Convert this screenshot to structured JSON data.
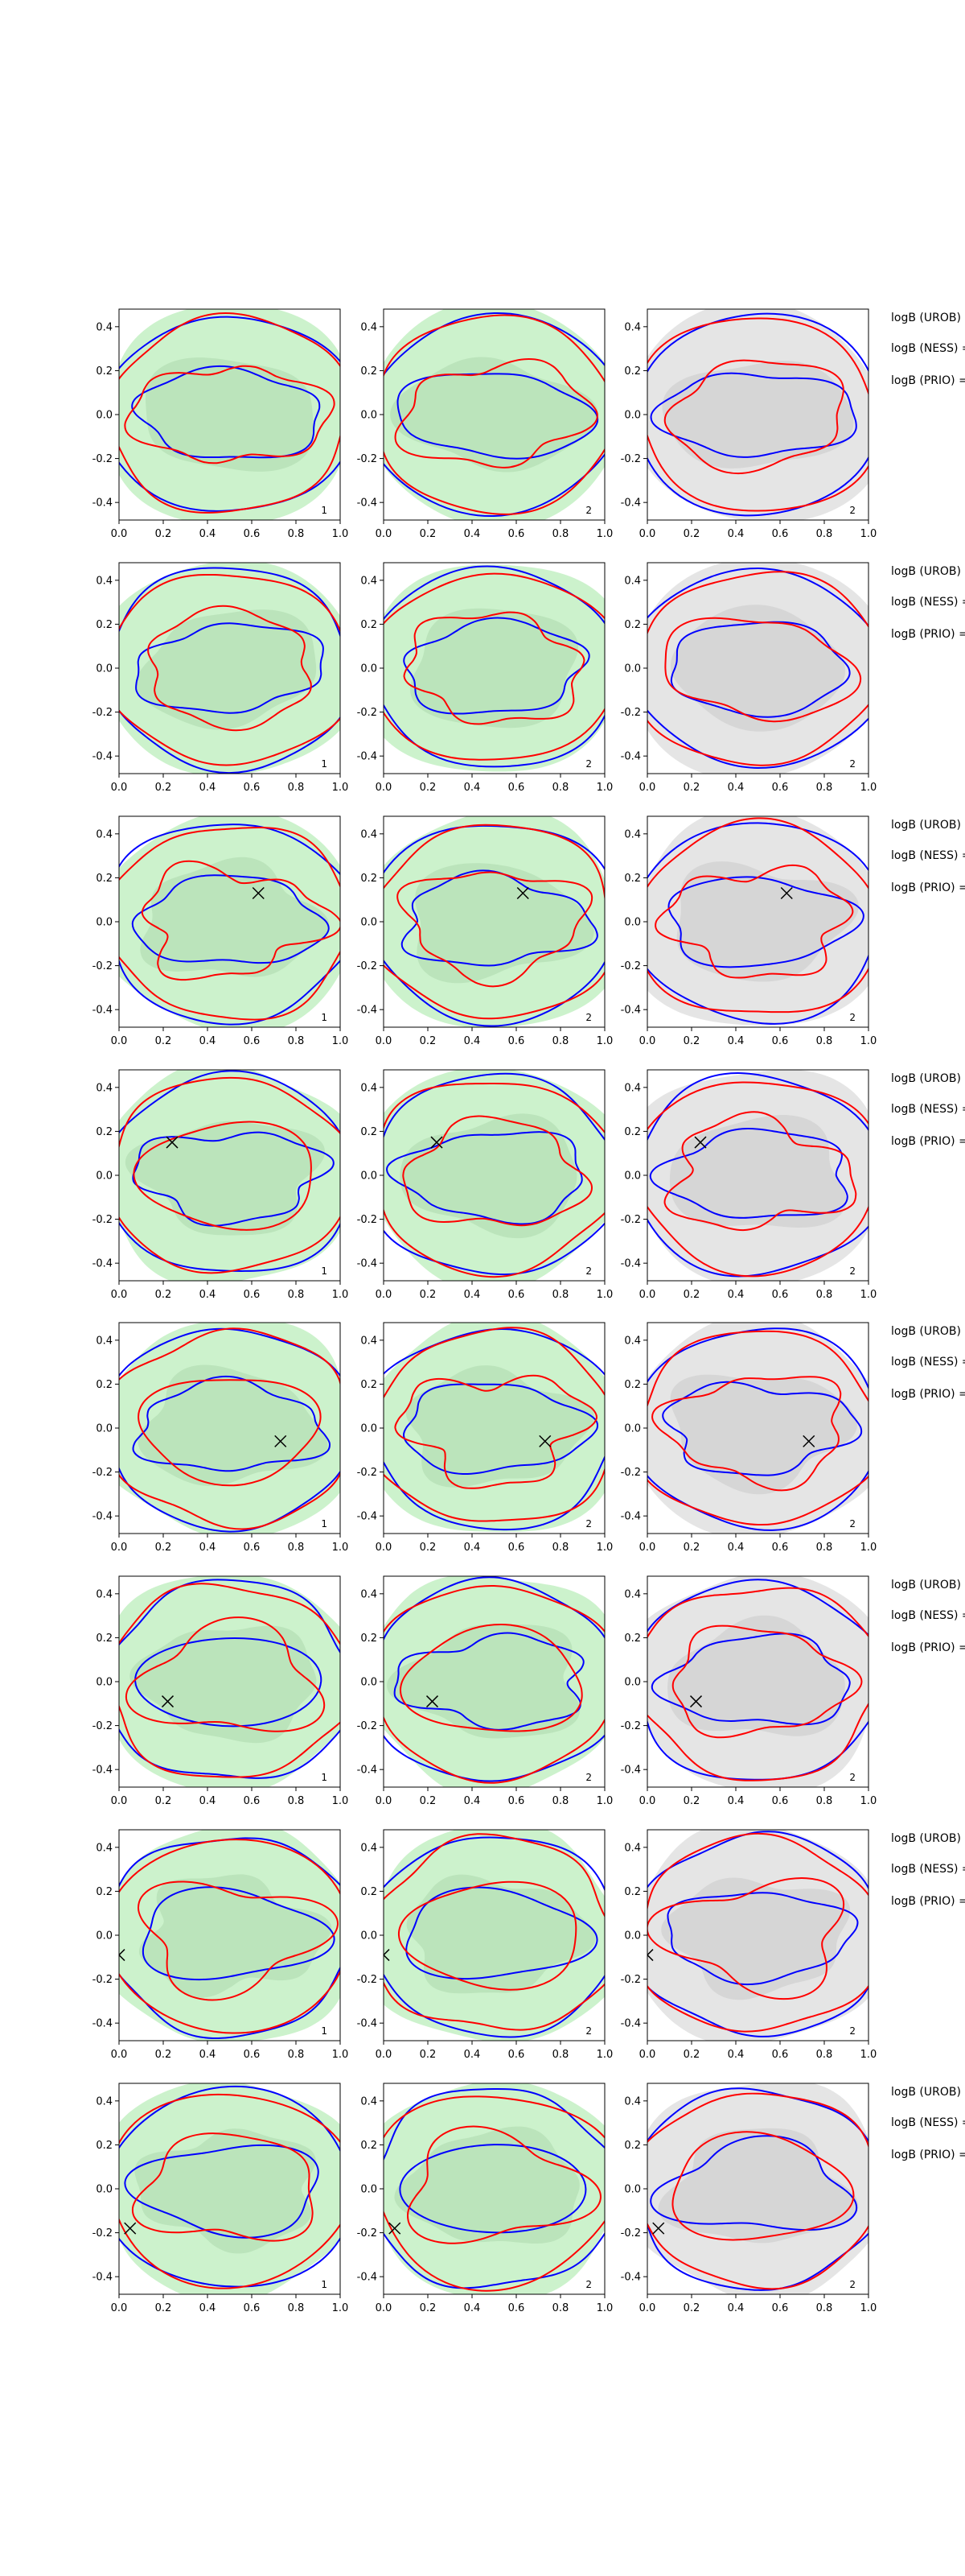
{
  "chart_data": {
    "type": "contour",
    "grid": {
      "rows": 8,
      "cols": 3
    },
    "xlim": [
      0.0,
      1.0
    ],
    "ylim": [
      -0.48,
      0.48
    ],
    "x_ticks": [
      "0.0",
      "0.2",
      "0.4",
      "0.6",
      "0.8",
      "1.0"
    ],
    "y_ticks": [
      "0.4",
      "0.2",
      "0.0",
      "-0.2",
      "-0.4"
    ],
    "panel_labels": [
      "1",
      "2",
      "2"
    ],
    "colors": {
      "fill_green": "#ccf2cc",
      "fill_green_inner": "#b7e2b7",
      "fill_gray": "#e5e5e5",
      "fill_gray_inner": "#d3d3d3",
      "contour_red": "#ff0000",
      "contour_blue": "#0000ff",
      "marker": "#000000"
    },
    "logb_labels": [
      "logB (UROB) =",
      "logB (NESS) =",
      "logB (PRIO) ="
    ],
    "markers": [
      null,
      null,
      {
        "x": 0.63,
        "y": 0.13
      },
      {
        "x": 0.24,
        "y": 0.15
      },
      {
        "x": 0.73,
        "y": -0.06
      },
      {
        "x": 0.22,
        "y": -0.09
      },
      {
        "x": 0.0,
        "y": -0.09
      },
      {
        "x": 0.05,
        "y": -0.18
      }
    ]
  }
}
